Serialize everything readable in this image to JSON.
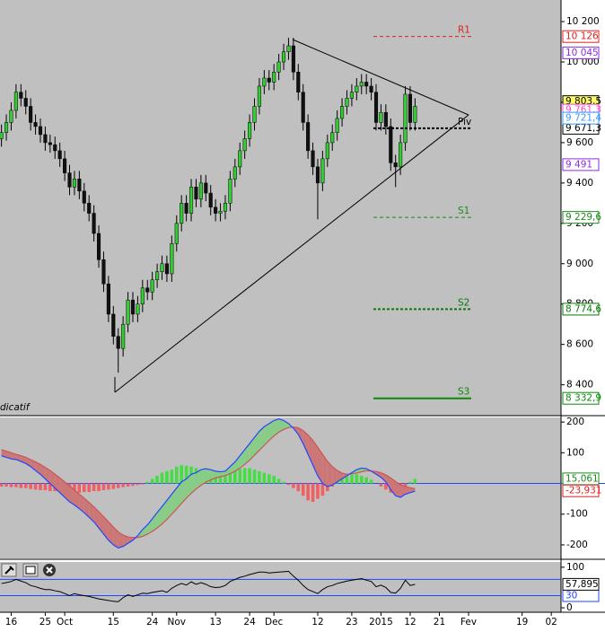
{
  "chart_data": [
    {
      "type": "candlestick",
      "annotation": "dicatif",
      "xlim": [
        -0.3,
        115
      ],
      "ylim": [
        8247,
        10307
      ],
      "xticks": [
        {
          "value": 2,
          "label": "16"
        },
        {
          "value": 9,
          "label": "25"
        },
        {
          "value": 13,
          "label": "Oct"
        },
        {
          "value": 23,
          "label": "15"
        },
        {
          "value": 31,
          "label": "24"
        },
        {
          "value": 36,
          "label": "Nov"
        },
        {
          "value": 44,
          "label": "13"
        },
        {
          "value": 51,
          "label": "24"
        },
        {
          "value": 56,
          "label": "Dec"
        },
        {
          "value": 65,
          "label": "12"
        },
        {
          "value": 72,
          "label": "23"
        },
        {
          "value": 78,
          "label": "2015"
        },
        {
          "value": 84,
          "label": "12"
        },
        {
          "value": 90,
          "label": "21"
        },
        {
          "value": 96,
          "label": "Fev"
        },
        {
          "value": 107,
          "label": "19"
        },
        {
          "value": 113,
          "label": "02"
        }
      ],
      "yticks": [
        {
          "value": 10200,
          "label": "10 200"
        },
        {
          "value": 10000,
          "label": "10 000"
        },
        {
          "value": 9800,
          "label": "9 800"
        },
        {
          "value": 9600,
          "label": "9 600"
        },
        {
          "value": 9400,
          "label": "9 400"
        },
        {
          "value": 9200,
          "label": "9 200"
        },
        {
          "value": 9000,
          "label": "9 000"
        },
        {
          "value": 8800,
          "label": "8 800"
        },
        {
          "value": 8600,
          "label": "8 600"
        },
        {
          "value": 8400,
          "label": "8 400"
        }
      ],
      "up_color": "#33cc33",
      "down_color": "#111111",
      "open": [
        9620,
        9650,
        9700,
        9760,
        9850,
        9820,
        9780,
        9700,
        9680,
        9640,
        9600,
        9590,
        9560,
        9520,
        9450,
        9380,
        9420,
        9360,
        9300,
        9250,
        9150,
        9020,
        8900,
        8750,
        8640,
        8580,
        8700,
        8820,
        8750,
        8800,
        8880,
        8860,
        8920,
        8960,
        9000,
        8950,
        9100,
        9200,
        9300,
        9250,
        9380,
        9320,
        9400,
        9350,
        9280,
        9250,
        9260,
        9300,
        9420,
        9480,
        9560,
        9620,
        9700,
        9780,
        9880,
        9920,
        9900,
        9950,
        10000,
        10050,
        10080,
        9950,
        9850,
        9700,
        9560,
        9480,
        9400,
        9520,
        9600,
        9650,
        9720,
        9780,
        9820,
        9850,
        9880,
        9900,
        9880,
        9850,
        9700,
        9750,
        9680,
        9500,
        9480,
        9600,
        9840,
        9700
      ],
      "high": [
        9690,
        9740,
        9800,
        9890,
        9890,
        9860,
        9820,
        9740,
        9720,
        9680,
        9640,
        9630,
        9600,
        9560,
        9490,
        9460,
        9460,
        9400,
        9340,
        9290,
        9190,
        9060,
        8940,
        8790,
        8680,
        8740,
        8860,
        8860,
        8840,
        8920,
        8920,
        8960,
        9000,
        9040,
        9040,
        9140,
        9240,
        9340,
        9340,
        9420,
        9420,
        9440,
        9440,
        9390,
        9320,
        9300,
        9340,
        9460,
        9520,
        9600,
        9660,
        9740,
        9820,
        9920,
        9960,
        9960,
        9990,
        10040,
        10090,
        10120,
        10120,
        9990,
        9890,
        9740,
        9600,
        9520,
        9560,
        9640,
        9690,
        9760,
        9820,
        9860,
        9890,
        9920,
        9940,
        9940,
        9920,
        9890,
        9790,
        9790,
        9720,
        9540,
        9640,
        9880,
        9880,
        9820
      ],
      "low": [
        9580,
        9610,
        9660,
        9720,
        9780,
        9740,
        9660,
        9640,
        9600,
        9560,
        9550,
        9520,
        9480,
        9410,
        9340,
        9340,
        9320,
        9260,
        9210,
        9110,
        8980,
        8860,
        8710,
        8600,
        8460,
        8540,
        8660,
        8710,
        8710,
        8760,
        8820,
        8820,
        8880,
        8920,
        8910,
        8910,
        9060,
        9160,
        9210,
        9210,
        9280,
        9280,
        9310,
        9240,
        9210,
        9210,
        9220,
        9260,
        9380,
        9440,
        9520,
        9580,
        9660,
        9740,
        9840,
        9860,
        9860,
        9910,
        9960,
        10010,
        9910,
        9810,
        9660,
        9520,
        9440,
        9220,
        9360,
        9480,
        9560,
        9610,
        9680,
        9740,
        9780,
        9810,
        9840,
        9840,
        9810,
        9660,
        9660,
        9640,
        9460,
        9380,
        9440,
        9560,
        9660,
        9660
      ],
      "close": [
        9650,
        9700,
        9760,
        9850,
        9820,
        9780,
        9700,
        9680,
        9640,
        9600,
        9590,
        9560,
        9520,
        9450,
        9380,
        9420,
        9360,
        9300,
        9250,
        9150,
        9020,
        8900,
        8750,
        8640,
        8580,
        8700,
        8820,
        8750,
        8800,
        8880,
        8860,
        8920,
        8960,
        9000,
        8950,
        9100,
        9200,
        9300,
        9250,
        9380,
        9320,
        9400,
        9350,
        9280,
        9250,
        9260,
        9300,
        9420,
        9480,
        9560,
        9620,
        9700,
        9780,
        9880,
        9920,
        9900,
        9950,
        10000,
        10050,
        10080,
        9950,
        9850,
        9700,
        9560,
        9480,
        9400,
        9520,
        9600,
        9650,
        9720,
        9780,
        9820,
        9850,
        9880,
        9900,
        9880,
        9850,
        9700,
        9750,
        9680,
        9500,
        9480,
        9600,
        9840,
        9700,
        9780
      ],
      "levels": [
        {
          "name": "R1",
          "value": 10126,
          "label": "10 126",
          "color": "#e02020",
          "style": "dashed"
        },
        {
          "name": "Piv",
          "value": 9671.3,
          "label": "9 671,3",
          "color": "#000000",
          "style": "thick-dashed"
        },
        {
          "name": "S1",
          "value": 9229.6,
          "label": "9 229,6",
          "color": "#1a8a1a",
          "style": "dashed"
        },
        {
          "name": "S2",
          "value": 8774.6,
          "label": "8 774,6",
          "color": "#0a7a0a",
          "style": "thick-dashed"
        },
        {
          "name": "S3",
          "value": 8332.9,
          "label": "8 332,9",
          "color": "#0a8a0a",
          "style": "solid"
        }
      ],
      "markers": [
        {
          "value": 10045,
          "label": "10 045",
          "color": "#8a2be2",
          "bg": "#ffffff"
        },
        {
          "value": 9803.5,
          "label": "9 803,5",
          "color": "#000000",
          "bg": "#ffff66"
        },
        {
          "value": 9761.3,
          "label": "9 761,3",
          "color": "#ff44cc",
          "bg": "#ffffff"
        },
        {
          "value": 9721.4,
          "label": "9 721,4",
          "color": "#3399ff",
          "bg": "#ffffff"
        },
        {
          "value": 9491,
          "label": "9 491",
          "color": "#8a2be2",
          "bg": "#ffffff"
        }
      ]
    },
    {
      "type": "macd",
      "ylim": [
        -244,
        215
      ],
      "yticks": [
        200,
        100,
        -100,
        -200
      ],
      "macd": [
        90,
        85,
        80,
        78,
        72,
        65,
        55,
        42,
        30,
        15,
        0,
        -15,
        -30,
        -45,
        -60,
        -70,
        -82,
        -95,
        -110,
        -125,
        -145,
        -165,
        -185,
        -200,
        -210,
        -205,
        -195,
        -185,
        -170,
        -150,
        -135,
        -115,
        -95,
        -75,
        -55,
        -35,
        -15,
        5,
        15,
        30,
        35,
        45,
        48,
        45,
        40,
        38,
        40,
        55,
        70,
        90,
        110,
        130,
        150,
        170,
        185,
        195,
        205,
        210,
        205,
        195,
        180,
        160,
        130,
        95,
        60,
        25,
        0,
        -10,
        -5,
        5,
        15,
        25,
        35,
        45,
        50,
        48,
        40,
        30,
        20,
        5,
        -20,
        -40,
        -45,
        -35,
        -30,
        -25
      ],
      "signal": [
        110,
        105,
        100,
        95,
        90,
        85,
        78,
        70,
        62,
        52,
        42,
        30,
        18,
        5,
        -8,
        -22,
        -35,
        -48,
        -62,
        -76,
        -92,
        -108,
        -125,
        -142,
        -158,
        -168,
        -174,
        -176,
        -176,
        -172,
        -165,
        -156,
        -145,
        -132,
        -117,
        -100,
        -83,
        -65,
        -48,
        -32,
        -18,
        -6,
        4,
        12,
        18,
        22,
        26,
        32,
        40,
        50,
        62,
        76,
        92,
        108,
        124,
        140,
        155,
        167,
        176,
        182,
        184,
        181,
        172,
        158,
        140,
        118,
        95,
        72,
        55,
        42,
        34,
        30,
        31,
        34,
        38,
        41,
        41,
        39,
        35,
        28,
        18,
        6,
        -4,
        -10,
        -14,
        -17
      ],
      "histogram": [
        -10,
        -10,
        -12,
        -12,
        -15,
        -15,
        -18,
        -20,
        -22,
        -22,
        -25,
        -25,
        -25,
        -28,
        -30,
        -30,
        -30,
        -28,
        -28,
        -25,
        -25,
        -22,
        -20,
        -18,
        -15,
        -12,
        -10,
        -8,
        -5,
        -3,
        5,
        15,
        25,
        35,
        40,
        45,
        55,
        60,
        58,
        55,
        50,
        45,
        40,
        38,
        35,
        30,
        32,
        40,
        45,
        48,
        50,
        50,
        45,
        40,
        35,
        30,
        25,
        15,
        5,
        -5,
        -15,
        -25,
        -40,
        -55,
        -60,
        -50,
        -40,
        -25,
        -10,
        5,
        15,
        22,
        28,
        30,
        25,
        20,
        12,
        0,
        -10,
        -20,
        -30,
        -35,
        -30,
        -20,
        5,
        15
      ],
      "markers": [
        {
          "value": 15.061,
          "label": "15,061",
          "color": "#1a8a1a"
        },
        {
          "value": -23.931,
          "label": "-23,931",
          "color": "#e02020"
        }
      ]
    },
    {
      "type": "line",
      "ylim": [
        -11,
        113
      ],
      "yticks": [
        100,
        0
      ],
      "values": [
        60,
        62,
        65,
        70,
        66,
        62,
        55,
        52,
        48,
        45,
        45,
        42,
        40,
        35,
        30,
        35,
        32,
        30,
        28,
        25,
        22,
        20,
        18,
        16,
        15,
        25,
        32,
        28,
        32,
        36,
        35,
        38,
        40,
        42,
        38,
        48,
        55,
        60,
        56,
        64,
        58,
        62,
        58,
        52,
        50,
        51,
        55,
        65,
        70,
        75,
        78,
        82,
        85,
        88,
        88,
        86,
        87,
        88,
        89,
        90,
        78,
        68,
        55,
        45,
        40,
        35,
        45,
        52,
        55,
        60,
        63,
        66,
        68,
        70,
        72,
        68,
        65,
        52,
        56,
        50,
        38,
        36,
        48,
        68,
        55,
        58
      ],
      "levels": [
        {
          "value": 70
        },
        {
          "value": 30,
          "label": "30"
        }
      ],
      "markers": [
        {
          "value": 57.895,
          "label": "57,895"
        }
      ]
    }
  ]
}
